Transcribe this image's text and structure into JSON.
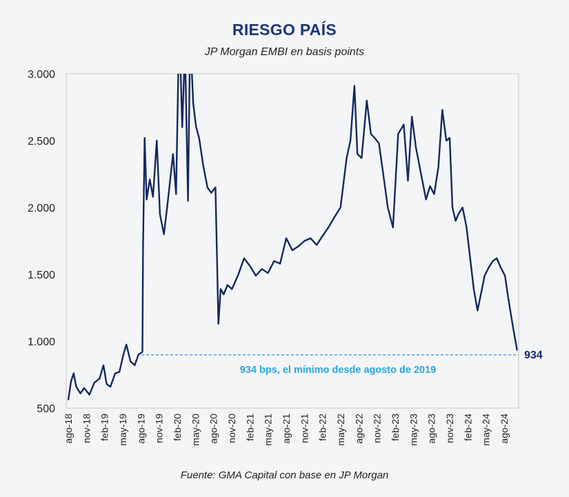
{
  "chart_data": {
    "type": "line",
    "title": "RIESGO PAÍS",
    "subtitle": "JP Morgan EMBI en basis points",
    "source": "Fuente: GMA Capital con base en JP Morgan",
    "xlabel": "",
    "ylabel": "",
    "ylim": [
      500,
      3000
    ],
    "yticks": [
      "500",
      "1.000",
      "1.500",
      "2.000",
      "2.500",
      "3.000"
    ],
    "ytick_values": [
      500,
      1000,
      1500,
      2000,
      2500,
      3000
    ],
    "xticks": [
      "ago-18",
      "nov-18",
      "feb-19",
      "may-19",
      "ago-19",
      "nov-19",
      "feb-20",
      "may-20",
      "ago-20",
      "nov-20",
      "feb-21",
      "may-21",
      "ago-21",
      "nov-21",
      "feb-22",
      "may-22",
      "ago-22",
      "nov-22",
      "feb-23",
      "may-23",
      "ago-23",
      "nov-23",
      "feb-24",
      "may-24",
      "ago-24"
    ],
    "grid": false,
    "line_color": "#14285e",
    "series": [
      {
        "x": [
          "2018-08-01",
          "2018-08-15",
          "2018-08-28",
          "2018-09-10",
          "2018-10-01",
          "2018-10-20",
          "2018-11-15",
          "2018-12-10",
          "2019-01-05",
          "2019-01-25",
          "2019-02-10",
          "2019-03-01",
          "2019-03-25",
          "2019-04-15",
          "2019-05-05",
          "2019-05-20",
          "2019-06-10",
          "2019-07-01",
          "2019-07-20",
          "2019-08-09",
          "2019-08-12",
          "2019-08-20",
          "2019-08-30",
          "2019-09-15",
          "2019-10-01",
          "2019-10-20",
          "2019-11-05",
          "2019-11-25",
          "2019-12-15",
          "2020-01-10",
          "2020-01-25",
          "2020-02-10",
          "2020-02-25",
          "2020-03-10",
          "2020-03-25",
          "2020-04-05",
          "2020-04-20",
          "2020-05-05",
          "2020-05-20",
          "2020-06-10",
          "2020-07-01",
          "2020-07-20",
          "2020-08-10",
          "2020-08-25",
          "2020-09-05",
          "2020-09-20",
          "2020-10-10",
          "2020-11-01",
          "2020-12-01",
          "2021-01-01",
          "2021-02-01",
          "2021-03-01",
          "2021-04-01",
          "2021-05-01",
          "2021-06-01",
          "2021-07-01",
          "2021-08-01",
          "2021-09-01",
          "2021-10-01",
          "2021-11-01",
          "2021-12-01",
          "2022-01-01",
          "2022-02-01",
          "2022-03-01",
          "2022-04-01",
          "2022-05-01",
          "2022-06-01",
          "2022-06-20",
          "2022-07-10",
          "2022-07-25",
          "2022-08-15",
          "2022-09-10",
          "2022-10-01",
          "2022-10-20",
          "2022-11-10",
          "2022-12-01",
          "2022-12-25",
          "2023-01-20",
          "2023-02-15",
          "2023-03-15",
          "2023-04-05",
          "2023-04-25",
          "2023-05-15",
          "2023-06-10",
          "2023-07-05",
          "2023-07-25",
          "2023-08-15",
          "2023-09-05",
          "2023-09-25",
          "2023-10-15",
          "2023-11-01",
          "2023-11-15",
          "2023-12-01",
          "2023-12-15",
          "2024-01-05",
          "2024-01-25",
          "2024-02-15",
          "2024-03-01",
          "2024-03-20",
          "2024-04-10",
          "2024-04-25",
          "2024-05-15",
          "2024-06-05",
          "2024-06-25",
          "2024-07-15",
          "2024-08-05",
          "2024-08-25",
          "2024-09-15",
          "2024-10-05",
          "2024-10-25",
          "2024-11-15",
          "2024-12-05"
        ],
        "values": [
          560,
          700,
          760,
          660,
          610,
          650,
          600,
          690,
          720,
          820,
          680,
          660,
          760,
          770,
          900,
          975,
          850,
          820,
          900,
          920,
          1700,
          2520,
          2060,
          2210,
          2080,
          2500,
          1950,
          1800,
          2050,
          2400,
          2100,
          3400,
          2600,
          3200,
          2050,
          3300,
          2780,
          2600,
          2520,
          2310,
          2150,
          2110,
          2150,
          1130,
          1390,
          1350,
          1420,
          1390,
          1490,
          1620,
          1560,
          1490,
          1540,
          1510,
          1600,
          1580,
          1770,
          1680,
          1710,
          1750,
          1770,
          1720,
          1790,
          1850,
          1930,
          2000,
          2370,
          2500,
          2910,
          2400,
          2370,
          2800,
          2550,
          2520,
          2480,
          2260,
          2000,
          1850,
          2550,
          2620,
          2200,
          2680,
          2450,
          2250,
          2060,
          2160,
          2100,
          2300,
          2730,
          2500,
          2520,
          2000,
          1900,
          1950,
          2000,
          1850,
          1580,
          1390,
          1230,
          1380,
          1490,
          1550,
          1600,
          1620,
          1550,
          1490,
          1290,
          1100,
          934,
          934,
          934,
          934
        ]
      }
    ],
    "annotation": {
      "label": "934 bps, el mínimo desde agosto de 2019",
      "value": 934,
      "color": "#2aa6d9"
    },
    "last_value_label": "934"
  }
}
